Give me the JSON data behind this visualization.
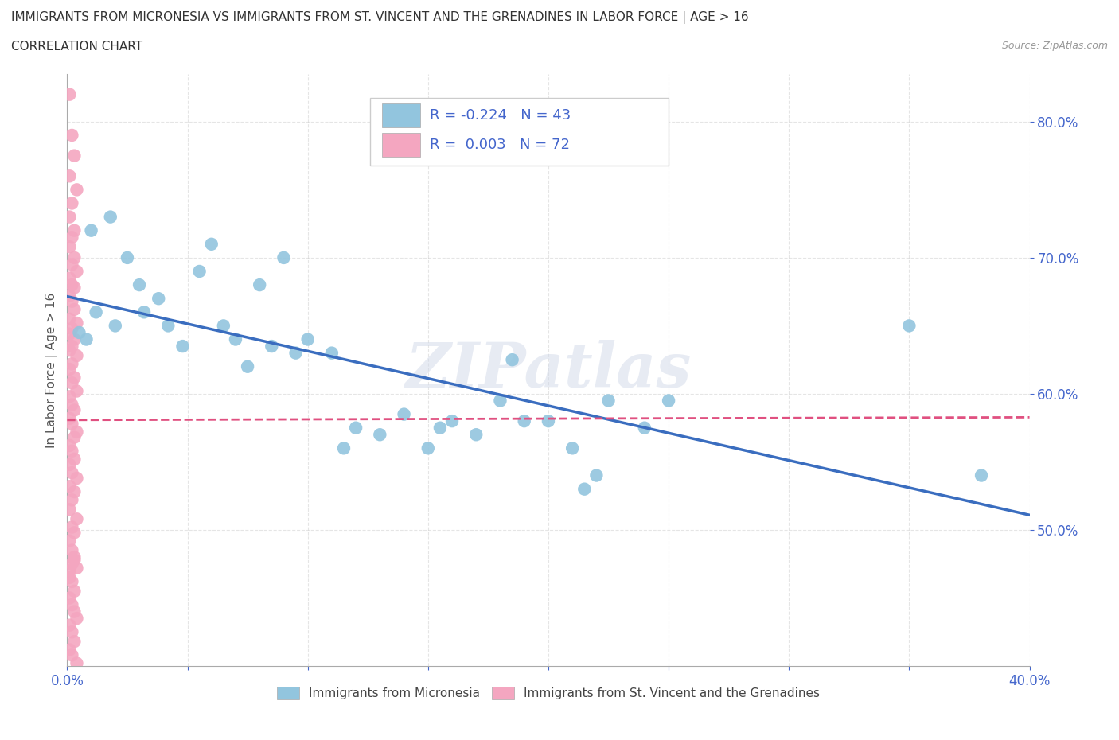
{
  "title": "IMMIGRANTS FROM MICRONESIA VS IMMIGRANTS FROM ST. VINCENT AND THE GRENADINES IN LABOR FORCE | AGE > 16",
  "subtitle": "CORRELATION CHART",
  "source": "Source: ZipAtlas.com",
  "ylabel": "In Labor Force | Age > 16",
  "xmin": 0.0,
  "xmax": 0.4,
  "ymin": 0.4,
  "ymax": 0.835,
  "watermark": "ZIPatlas",
  "legend1_label": "Immigrants from Micronesia",
  "legend2_label": "Immigrants from St. Vincent and the Grenadines",
  "r1": -0.224,
  "n1": 43,
  "r2": 0.003,
  "n2": 72,
  "color1": "#92c5de",
  "color2": "#f4a6c0",
  "trendline1_color": "#3a6dbf",
  "trendline2_color": "#e05080",
  "tick_color": "#4466cc",
  "micronesia_x": [
    0.005,
    0.008,
    0.01,
    0.012,
    0.018,
    0.02,
    0.025,
    0.03,
    0.032,
    0.038,
    0.042,
    0.048,
    0.055,
    0.06,
    0.065,
    0.07,
    0.075,
    0.08,
    0.085,
    0.09,
    0.095,
    0.1,
    0.11,
    0.115,
    0.12,
    0.13,
    0.14,
    0.15,
    0.155,
    0.16,
    0.17,
    0.18,
    0.185,
    0.19,
    0.2,
    0.21,
    0.215,
    0.22,
    0.225,
    0.24,
    0.25,
    0.35,
    0.38
  ],
  "micronesia_y": [
    0.645,
    0.64,
    0.72,
    0.66,
    0.73,
    0.65,
    0.7,
    0.68,
    0.66,
    0.67,
    0.65,
    0.635,
    0.69,
    0.71,
    0.65,
    0.64,
    0.62,
    0.68,
    0.635,
    0.7,
    0.63,
    0.64,
    0.63,
    0.56,
    0.575,
    0.57,
    0.585,
    0.56,
    0.575,
    0.58,
    0.57,
    0.595,
    0.625,
    0.58,
    0.58,
    0.56,
    0.53,
    0.54,
    0.595,
    0.575,
    0.595,
    0.65,
    0.54
  ],
  "vincent_x": [
    0.001,
    0.002,
    0.003,
    0.001,
    0.004,
    0.002,
    0.001,
    0.003,
    0.002,
    0.001,
    0.003,
    0.002,
    0.004,
    0.001,
    0.002,
    0.003,
    0.001,
    0.002,
    0.003,
    0.001,
    0.004,
    0.002,
    0.001,
    0.003,
    0.002,
    0.001,
    0.004,
    0.002,
    0.001,
    0.003,
    0.002,
    0.004,
    0.001,
    0.002,
    0.003,
    0.001,
    0.002,
    0.004,
    0.003,
    0.001,
    0.002,
    0.003,
    0.001,
    0.002,
    0.004,
    0.001,
    0.003,
    0.002,
    0.001,
    0.004,
    0.002,
    0.003,
    0.001,
    0.002,
    0.003,
    0.004,
    0.001,
    0.002,
    0.003,
    0.001,
    0.002,
    0.003,
    0.004,
    0.001,
    0.002,
    0.003,
    0.001,
    0.002,
    0.004,
    0.003,
    0.001,
    0.002
  ],
  "vincent_y": [
    0.82,
    0.79,
    0.775,
    0.76,
    0.75,
    0.74,
    0.73,
    0.72,
    0.715,
    0.708,
    0.7,
    0.695,
    0.69,
    0.685,
    0.68,
    0.678,
    0.672,
    0.668,
    0.662,
    0.655,
    0.652,
    0.648,
    0.644,
    0.64,
    0.635,
    0.632,
    0.628,
    0.622,
    0.618,
    0.612,
    0.608,
    0.602,
    0.598,
    0.592,
    0.588,
    0.582,
    0.578,
    0.572,
    0.568,
    0.562,
    0.558,
    0.552,
    0.548,
    0.542,
    0.538,
    0.532,
    0.528,
    0.522,
    0.515,
    0.508,
    0.502,
    0.498,
    0.492,
    0.485,
    0.478,
    0.472,
    0.465,
    0.462,
    0.455,
    0.45,
    0.445,
    0.44,
    0.435,
    0.43,
    0.425,
    0.418,
    0.412,
    0.408,
    0.402,
    0.48,
    0.47,
    0.475
  ]
}
